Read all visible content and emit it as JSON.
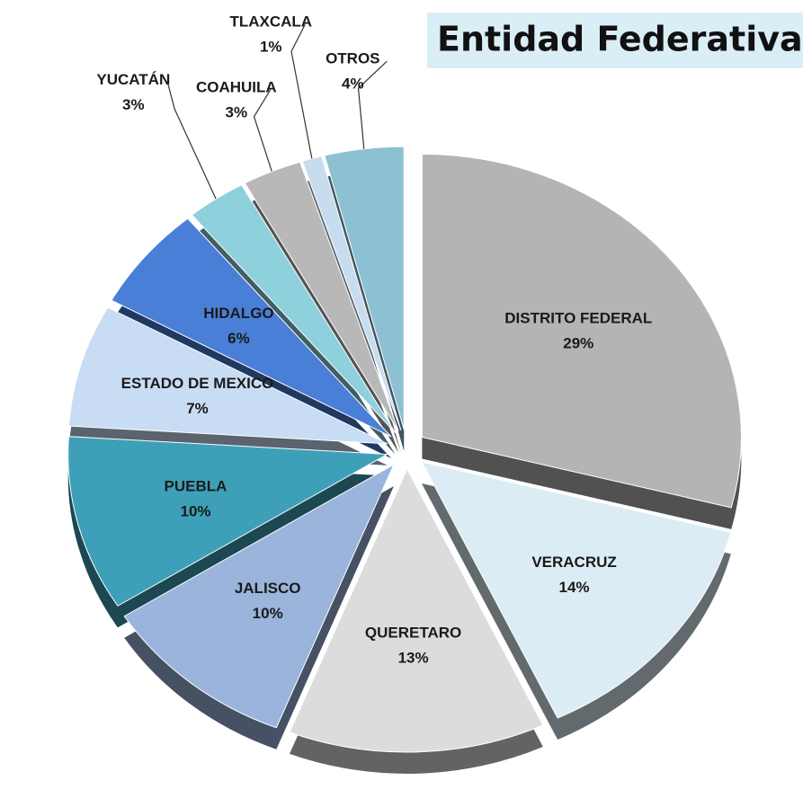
{
  "chart_data": {
    "type": "pie",
    "title": "Entidad Federativa",
    "categories": [
      "DISTRITO FEDERAL",
      "VERACRUZ",
      "QUERETARO",
      "JALISCO",
      "PUEBLA",
      "ESTADO DE MEXICO",
      "HIDALGO",
      "YUCATÁN",
      "COAHUILA",
      "TLAXCALA",
      "OTROS"
    ],
    "values": [
      29,
      14,
      13,
      10,
      10,
      7,
      6,
      3,
      3,
      1,
      4
    ],
    "value_labels": [
      "29%",
      "14%",
      "13%",
      "10%",
      "10%",
      "7%",
      "6%",
      "3%",
      "3%",
      "1%",
      "4%"
    ],
    "colors": [
      "#b4b4b4",
      "#dcecf4",
      "#dcdcdc",
      "#9bb4dc",
      "#3ea0b8",
      "#c8dcf4",
      "#4a7fd8",
      "#8ed0dc",
      "#b8b8b8",
      "#c8dcf0",
      "#8ec0d4"
    ]
  }
}
